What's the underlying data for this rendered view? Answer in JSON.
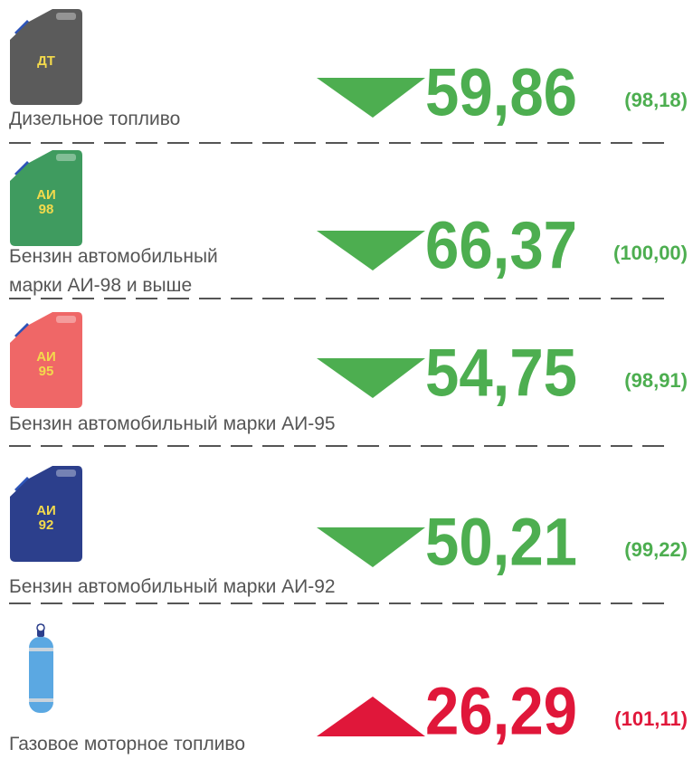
{
  "items": [
    {
      "label": [
        "Дизельное топливо"
      ],
      "tag": [
        "ДТ"
      ],
      "icon": "canister",
      "icon_color": "#5b5b5b",
      "price": "59,86",
      "index": "(98,18)",
      "trend": "down",
      "color": "#4dae50"
    },
    {
      "label": [
        "Бензин автомобильный",
        "марки АИ-98 и выше"
      ],
      "tag": [
        "АИ",
        "98"
      ],
      "icon": "canister",
      "icon_color": "#3f9b5f",
      "price": "66,37",
      "index": "(100,00)",
      "trend": "down",
      "color": "#4dae50"
    },
    {
      "label": [
        "Бензин автомобильный марки АИ-95"
      ],
      "tag": [
        "АИ",
        "95"
      ],
      "icon": "canister",
      "icon_color": "#ef6767",
      "price": "54,75",
      "index": "(98,91)",
      "trend": "down",
      "color": "#4dae50"
    },
    {
      "label": [
        "Бензин автомобильный марки АИ-92"
      ],
      "tag": [
        "АИ",
        "92"
      ],
      "icon": "canister",
      "icon_color": "#2c3f8c",
      "price": "50,21",
      "index": "(99,22)",
      "trend": "down",
      "color": "#4dae50"
    },
    {
      "label": [
        "Газовое моторное топливо"
      ],
      "tag": [],
      "icon": "cylinder",
      "icon_color": "#5ba8e2",
      "price": "26,29",
      "index": "(101,11)",
      "trend": "up",
      "color": "#e0173a"
    }
  ]
}
